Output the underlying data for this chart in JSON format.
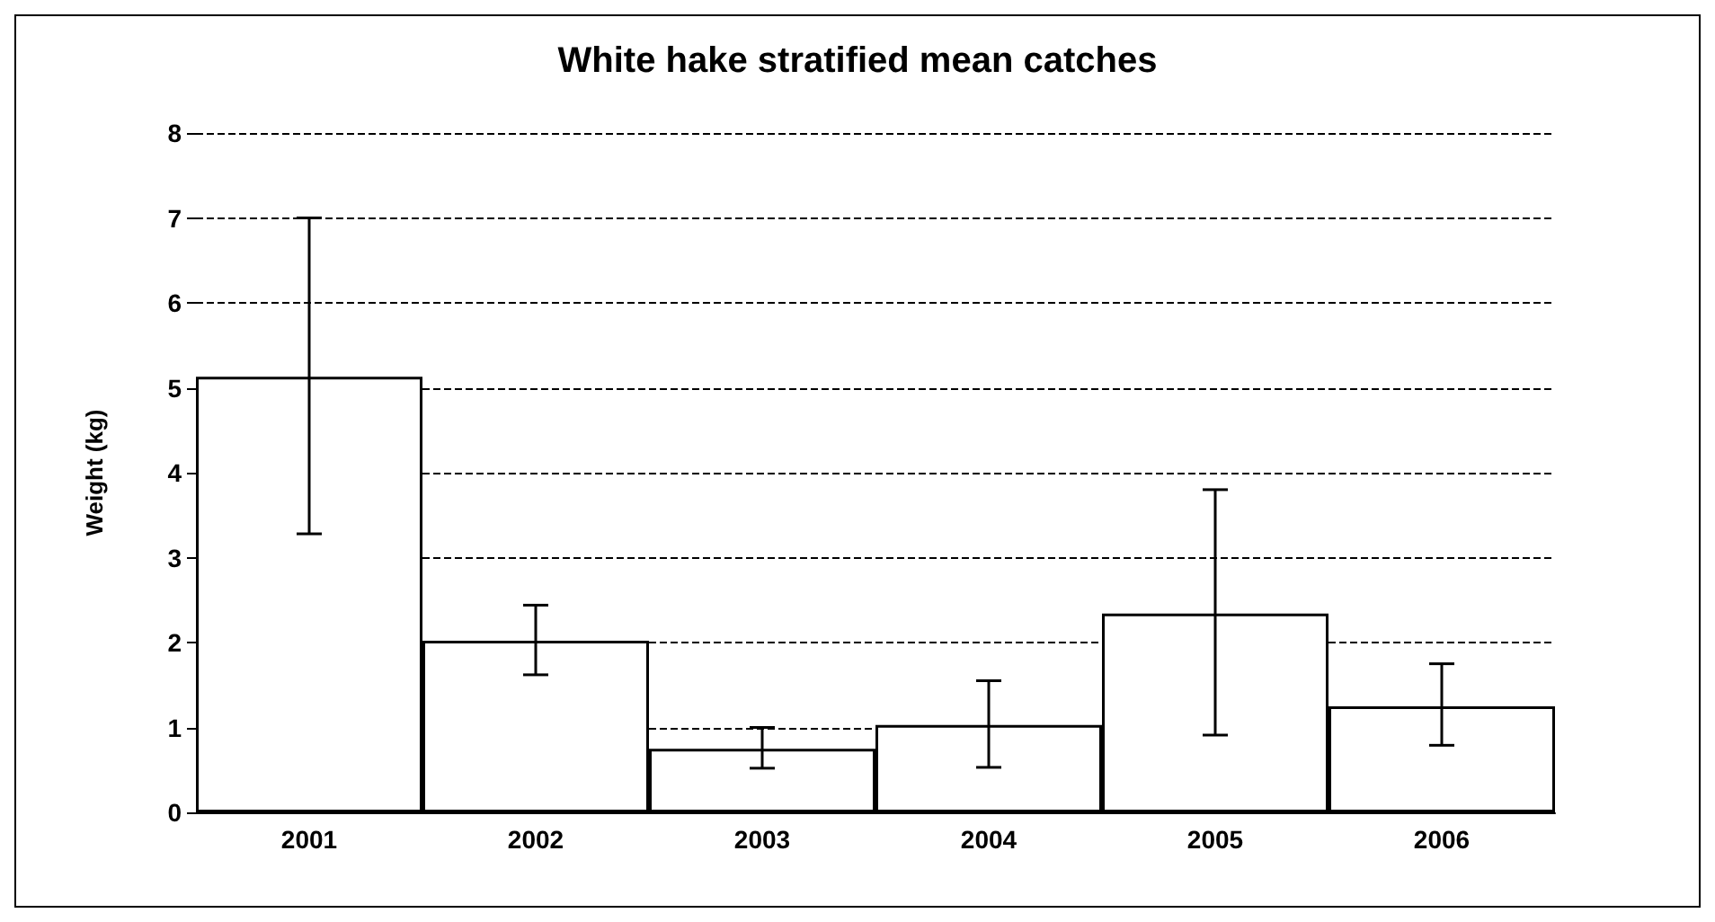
{
  "chart_data": {
    "type": "bar",
    "title": "White hake stratified mean catches",
    "ylabel": "Weight (kg)",
    "categories": [
      "2001",
      "2002",
      "2003",
      "2004",
      "2005",
      "2006"
    ],
    "values": [
      5.13,
      2.02,
      0.75,
      1.03,
      2.34,
      1.25
    ],
    "errors": [
      [
        3.28,
        7.0
      ],
      [
        1.62,
        2.44
      ],
      [
        0.52,
        1.0
      ],
      [
        0.53,
        1.55
      ],
      [
        0.91,
        3.8
      ],
      [
        0.79,
        1.75
      ]
    ],
    "color": "#ffffff",
    "ylim": [
      0,
      8
    ],
    "yticks": [
      0,
      1,
      2,
      3,
      4,
      5,
      6,
      7,
      8
    ],
    "grid": "y"
  }
}
